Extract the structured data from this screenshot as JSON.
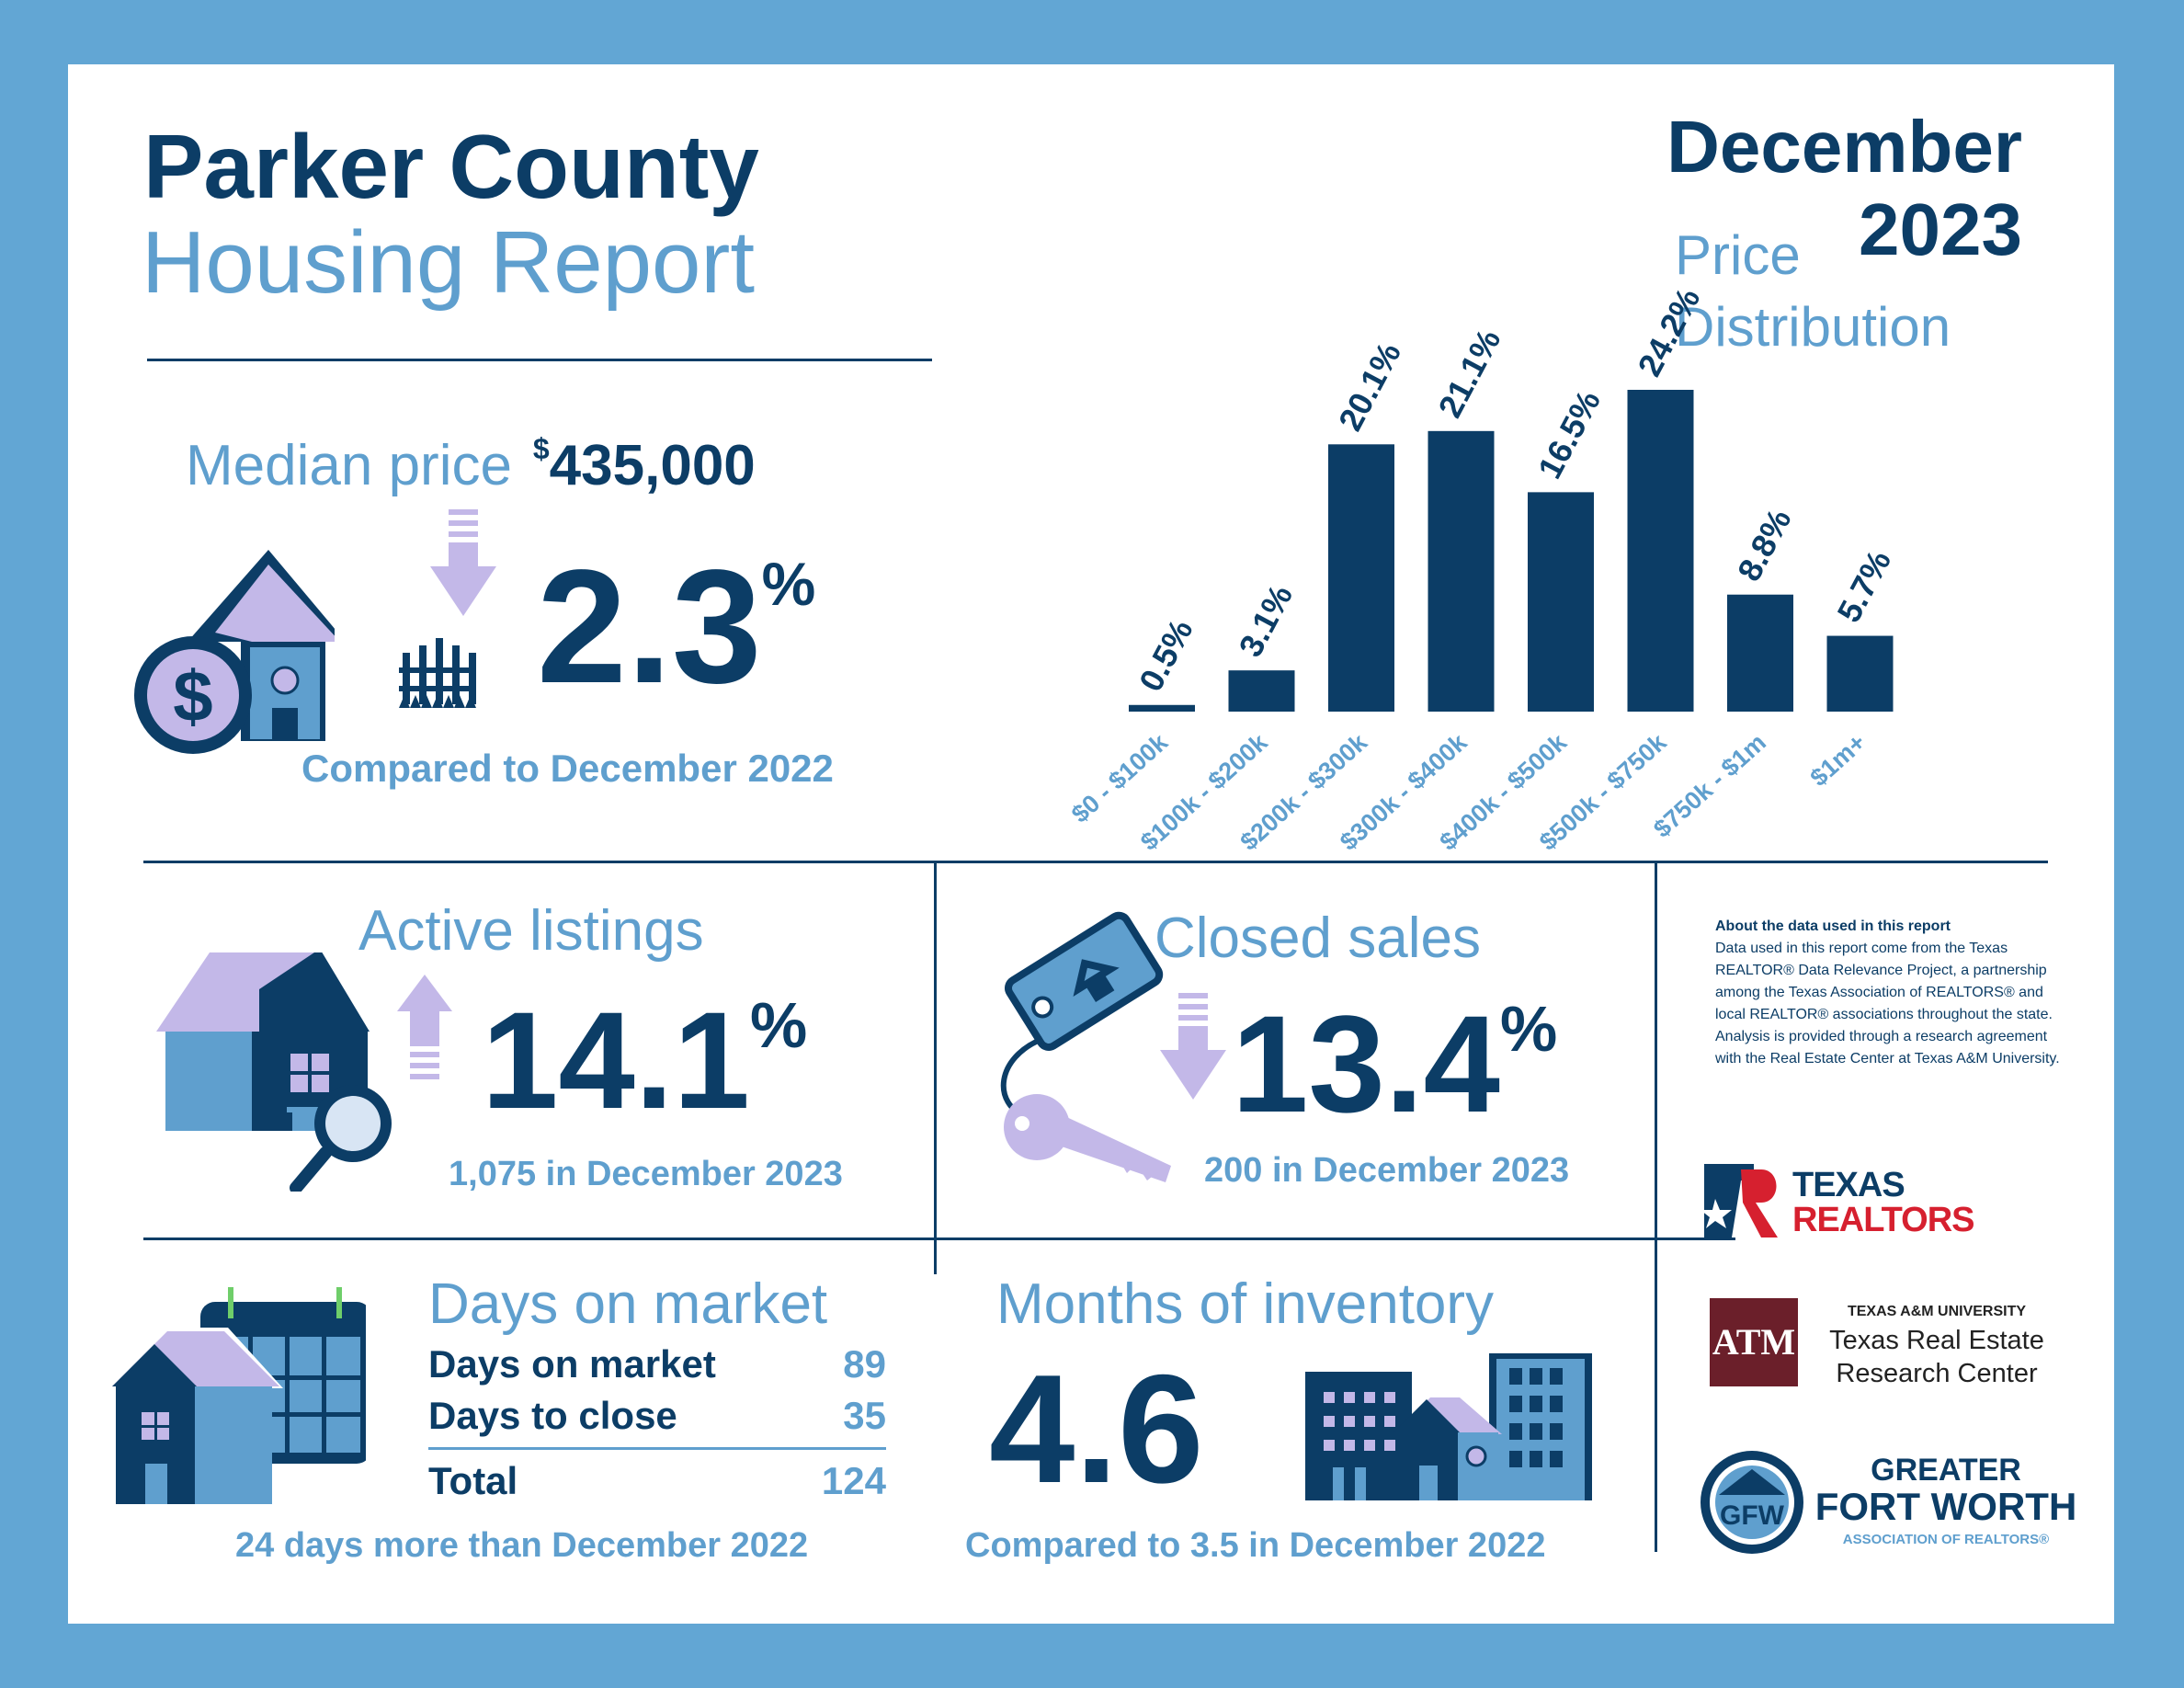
{
  "header": {
    "title_line1": "Parker County",
    "title_line2": "Housing Report",
    "month": "December",
    "year": "2023"
  },
  "median_price": {
    "label": "Median price",
    "currency": "$",
    "value": "435,000",
    "change_number": "2.3",
    "change_unit": "%",
    "change_direction": "down",
    "comparison": "Compared to December 2022"
  },
  "price_distribution": {
    "title_line1": "Price",
    "title_line2": "Distribution"
  },
  "chart_data": {
    "type": "bar",
    "title": "Price Distribution",
    "categories": [
      "$0 - $100k",
      "$100k - $200k",
      "$200k - $300k",
      "$300k - $400k",
      "$400k - $500k",
      "$500k - $750k",
      "$750k - $1m",
      "$1m+"
    ],
    "values": [
      0.5,
      3.1,
      20.1,
      21.1,
      16.5,
      24.2,
      8.8,
      5.7
    ],
    "value_labels": [
      "0.5%",
      "3.1%",
      "20.1%",
      "21.1%",
      "16.5%",
      "24.2%",
      "8.8%",
      "5.7%"
    ],
    "ylim": [
      0,
      24.2
    ],
    "grid": false,
    "colors": {
      "bar": "#0c3d66",
      "tick_label": "#5f9fce"
    }
  },
  "active_listings": {
    "label": "Active listings",
    "change_number": "14.1",
    "change_unit": "%",
    "change_direction": "up",
    "detail": "1,075 in December 2023"
  },
  "closed_sales": {
    "label": "Closed sales",
    "change_number": "13.4",
    "change_unit": "%",
    "change_direction": "down",
    "detail": "200 in December 2023"
  },
  "days_on_market": {
    "label": "Days on market",
    "rows": [
      {
        "name": "Days on market",
        "value": "89"
      },
      {
        "name": "Days to close",
        "value": "35"
      }
    ],
    "total_label": "Total",
    "total_value": "124",
    "comparison": "24 days more than December 2022"
  },
  "months_inventory": {
    "label": "Months of inventory",
    "value": "4.6",
    "comparison": "Compared to 3.5 in December 2022"
  },
  "about": {
    "heading": "About the data used in this report",
    "body": "Data used in this report come from the Texas REALTOR® Data Relevance Project, a partnership among the Texas Association of REALTORS® and local REALTOR® associations throughout the state. Analysis is provided through a research agreement with the Real Estate Center at Texas A&M University."
  },
  "logos": {
    "texas_realtors": {
      "line1": "TEXAS",
      "line2": "REALTORS"
    },
    "tamu": {
      "mark": "ATM",
      "small": "TEXAS A&M UNIVERSITY",
      "line1": "Texas Real Estate",
      "line2": "Research Center"
    },
    "gfw": {
      "mark": "GFW",
      "line1": "GREATER",
      "line2": "FORT WORTH",
      "line3": "ASSOCIATION OF REALTORS®"
    }
  },
  "colors": {
    "navy": "#0c3d66",
    "light_blue": "#5f9fce",
    "lavender": "#c3b8e8",
    "border": "#62a6d4",
    "maroon": "#6b1f2a",
    "red": "#d6202f"
  },
  "icons": [
    "house-dollar-icon",
    "arrow-down-icon",
    "house-search-icon",
    "arrow-up-icon",
    "key-tag-icon",
    "calendar-house-icon",
    "buildings-icon"
  ]
}
